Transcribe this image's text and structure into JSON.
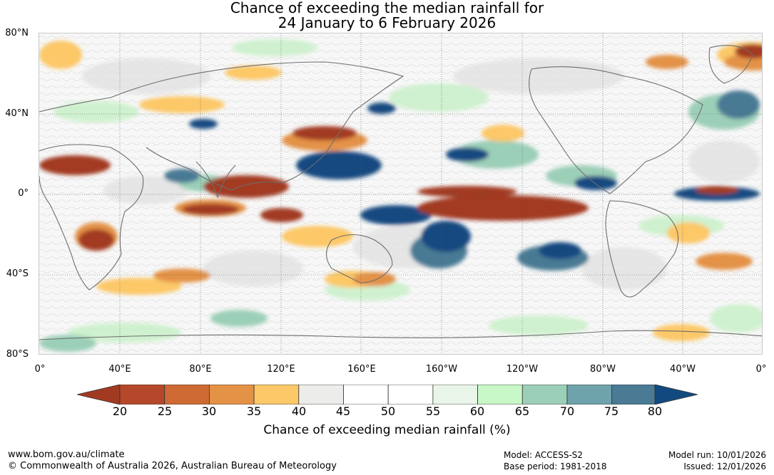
{
  "title": {
    "line1": "Chance of exceeding the median rainfall for",
    "line2": "24 January to 6 February 2026"
  },
  "map": {
    "lat_labels": [
      "80°N",
      "40°N",
      "0°",
      "40°S",
      "80°S"
    ],
    "lon_labels": [
      "0°",
      "40°E",
      "80°E",
      "120°E",
      "160°E",
      "160°W",
      "120°W",
      "80°W",
      "40°W",
      "0°"
    ]
  },
  "colorbar": {
    "ticks": [
      "20",
      "25",
      "30",
      "35",
      "40",
      "45",
      "50",
      "55",
      "60",
      "65",
      "70",
      "75",
      "80"
    ],
    "colors": [
      "#a23a22",
      "#b5482a",
      "#cf6a34",
      "#e39246",
      "#fcc868",
      "#ececea",
      "#ffffff",
      "#ffffff",
      "#e8f5e8",
      "#c8f7c8",
      "#9ccfb8",
      "#6fa3ac",
      "#4a7a94",
      "#124a80"
    ],
    "title": "Chance of exceeding median rainfall (%)"
  },
  "footer": {
    "website": "www.bom.gov.au/climate",
    "copyright": "© Commonwealth of Australia 2026, Australian Bureau of Meteorology",
    "model": "Model: ACCESS-S2",
    "base_period": "Base period: 1981-2018",
    "model_run": "Model run: 10/01/2026",
    "issued": "Issued: 12/01/2026"
  }
}
